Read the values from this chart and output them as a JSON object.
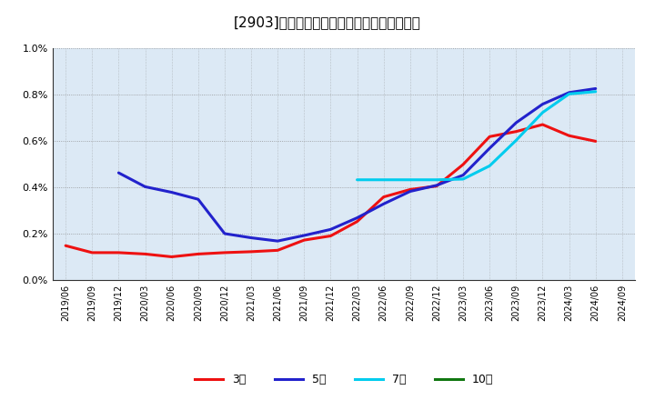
{
  "title": "[2903]　経常利益マージンの標準偏差の推移",
  "background_color": "#ffffff",
  "plot_bg_color": "#dce9f5",
  "grid_color": "#888888",
  "ylim": [
    0.0,
    0.01
  ],
  "yticks": [
    0.0,
    0.002,
    0.004,
    0.006,
    0.008,
    0.01
  ],
  "ytick_labels": [
    "0.0%",
    "0.2%",
    "0.4%",
    "0.6%",
    "0.8%",
    "1.0%"
  ],
  "x_labels": [
    "2019/06",
    "2019/09",
    "2019/12",
    "2020/03",
    "2020/06",
    "2020/09",
    "2020/12",
    "2021/03",
    "2021/06",
    "2021/09",
    "2021/12",
    "2022/03",
    "2022/06",
    "2022/09",
    "2022/12",
    "2023/03",
    "2023/06",
    "2023/09",
    "2023/12",
    "2024/03",
    "2024/06",
    "2024/09"
  ],
  "series_order": [
    "3年",
    "5年",
    "7年",
    "10年"
  ],
  "series": {
    "3年": {
      "color": "#ee1111",
      "linewidth": 2.2,
      "data_x": [
        0,
        1,
        2,
        3,
        4,
        5,
        6,
        7,
        8,
        9,
        10,
        11,
        12,
        13,
        14,
        15,
        16,
        17,
        18,
        19,
        20
      ],
      "data_y": [
        0.00148,
        0.00118,
        0.00118,
        0.00112,
        0.001,
        0.00112,
        0.00118,
        0.00122,
        0.00128,
        0.00172,
        0.0019,
        0.00252,
        0.00358,
        0.0039,
        0.00405,
        0.00498,
        0.00618,
        0.0064,
        0.0067,
        0.00622,
        0.00598
      ]
    },
    "5年": {
      "color": "#2222cc",
      "linewidth": 2.2,
      "data_x": [
        2,
        3,
        4,
        5,
        6,
        7,
        8,
        9,
        10,
        11,
        12,
        13,
        14,
        15,
        16,
        17,
        18,
        19,
        20
      ],
      "data_y": [
        0.00462,
        0.00402,
        0.00378,
        0.00348,
        0.002,
        0.00182,
        0.00168,
        0.00192,
        0.00218,
        0.00268,
        0.00328,
        0.00382,
        0.00408,
        0.00452,
        0.00568,
        0.00678,
        0.00758,
        0.00808,
        0.00825
      ]
    },
    "7年": {
      "color": "#00ccee",
      "linewidth": 2.2,
      "data_x": [
        11,
        12,
        13,
        14,
        15,
        16,
        17,
        18,
        19,
        20
      ],
      "data_y": [
        0.00432,
        0.00432,
        0.00432,
        0.00432,
        0.00435,
        0.00492,
        0.00602,
        0.00722,
        0.00802,
        0.00812
      ]
    },
    "10年": {
      "color": "#117711",
      "linewidth": 2.2,
      "data_x": [],
      "data_y": []
    }
  },
  "legend_labels": [
    "3年",
    "5年",
    "7年",
    "10年"
  ],
  "legend_colors": [
    "#ee1111",
    "#2222cc",
    "#00ccee",
    "#117711"
  ]
}
